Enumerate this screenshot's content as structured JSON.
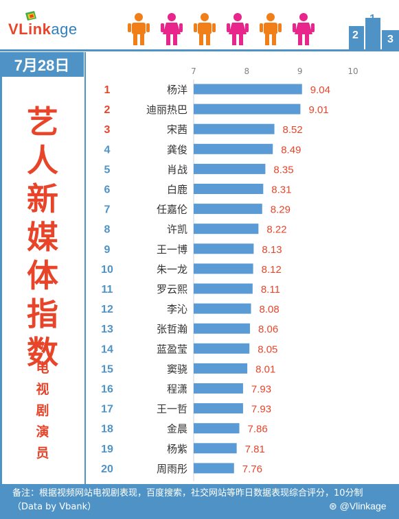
{
  "header": {
    "logo_part1": "VLink",
    "logo_part2": "age",
    "date": "7月28日",
    "podium_digits": [
      "2",
      "1",
      "3"
    ]
  },
  "sidebar": {
    "title_chars": [
      "艺",
      "人",
      "新",
      "媒",
      "体",
      "指",
      "数"
    ],
    "star": "*",
    "subtitle_chars": [
      "电",
      "视",
      "剧",
      "演",
      "员"
    ]
  },
  "footer": {
    "note": "备注：根据视频网站电视剧表现，百度搜索，社交网站等昨日数据表现综合评分，10分制（Data by Vbank）",
    "weibo_handle": "@Vlinkage"
  },
  "colors": {
    "accent_blue": "#4f93c6",
    "title_red": "#e8442a",
    "bar_blue": "#5b9bd5",
    "value_red": "#e8442a",
    "person_orange": "#f07f1a",
    "person_pink": "#e8258a"
  },
  "chart_data": {
    "type": "bar",
    "orientation": "horizontal",
    "xlim": [
      7,
      10
    ],
    "xticks": [
      "7",
      "8",
      "9",
      "10"
    ],
    "ranks": [
      "1",
      "2",
      "3",
      "4",
      "5",
      "6",
      "7",
      "8",
      "9",
      "10",
      "11",
      "12",
      "13",
      "14",
      "15",
      "16",
      "17",
      "18",
      "19",
      "20"
    ],
    "categories": [
      "杨洋",
      "迪丽热巴",
      "宋茜",
      "龚俊",
      "肖战",
      "白鹿",
      "任嘉伦",
      "许凯",
      "王一博",
      "朱一龙",
      "罗云熙",
      "李沁",
      "张哲瀚",
      "蓝盈莹",
      "窦骁",
      "程潇",
      "王一哲",
      "金晨",
      "杨紫",
      "周雨彤"
    ],
    "values": [
      9.04,
      9.01,
      8.52,
      8.49,
      8.35,
      8.31,
      8.29,
      8.22,
      8.13,
      8.12,
      8.11,
      8.08,
      8.06,
      8.05,
      8.01,
      7.93,
      7.93,
      7.86,
      7.81,
      7.76
    ],
    "value_labels": [
      "9.04",
      "9.01",
      "8.52",
      "8.49",
      "8.35",
      "8.31",
      "8.29",
      "8.22",
      "8.13",
      "8.12",
      "8.11",
      "8.08",
      "8.06",
      "8.05",
      "8.01",
      "7.93",
      "7.93",
      "7.86",
      "7.81",
      "7.76"
    ]
  }
}
